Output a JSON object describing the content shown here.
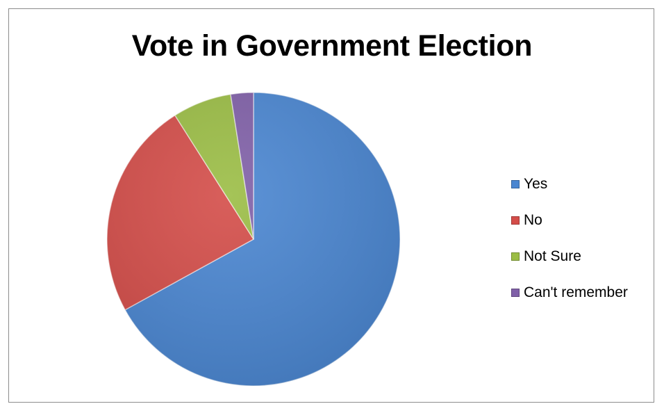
{
  "chart_data": {
    "type": "pie",
    "title": "Vote in Government Election",
    "categories": [
      "Yes",
      "No",
      "Not Sure",
      "Can't remember"
    ],
    "values": [
      67,
      24,
      6.5,
      2.5
    ],
    "legend_position": "right",
    "colors": [
      "#4a86d1",
      "#d44d49",
      "#9bbd45",
      "#8060a8"
    ]
  }
}
